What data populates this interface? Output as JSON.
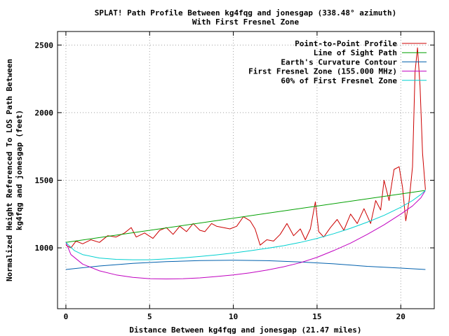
{
  "chart_data": {
    "type": "line",
    "title": "SPLAT! Path Profile Between kg4fqg and jonesgap (338.48° azimuth)",
    "subtitle": "With First Fresnel Zone",
    "xlabel": "Distance Between kg4fqg and jonesgap (21.47 miles)",
    "ylabel_line1": "Normalized Height Referenced To LOS Path Between",
    "ylabel_line2": "kg4fqg and jonesgap (feet)",
    "xlim": [
      -0.5,
      22
    ],
    "ylim": [
      550,
      2600
    ],
    "x_ticks": [
      0,
      5,
      10,
      15,
      20
    ],
    "y_ticks": [
      1000,
      1500,
      2000,
      2500
    ],
    "grid": true,
    "legend_position": "top-right",
    "series": [
      {
        "name": "Point-to-Point Profile",
        "color": "#cc0000",
        "x": [
          0,
          0.3,
          0.6,
          1.0,
          1.5,
          2.0,
          2.5,
          3.0,
          3.5,
          3.9,
          4.2,
          4.7,
          5.2,
          5.6,
          6.0,
          6.4,
          6.8,
          7.2,
          7.6,
          8.0,
          8.3,
          8.7,
          9.0,
          9.4,
          9.8,
          10.2,
          10.6,
          11.0,
          11.3,
          11.6,
          12.0,
          12.4,
          12.8,
          13.2,
          13.6,
          14.0,
          14.3,
          14.6,
          14.9,
          15.1,
          15.4,
          15.8,
          16.2,
          16.6,
          17.0,
          17.4,
          17.8,
          18.2,
          18.5,
          18.8,
          19.0,
          19.3,
          19.6,
          19.9,
          20.1,
          20.3,
          20.5,
          20.7,
          20.85,
          21.0,
          21.15,
          21.3,
          21.47
        ],
        "y": [
          1020,
          1000,
          1050,
          1030,
          1060,
          1040,
          1090,
          1080,
          1110,
          1150,
          1080,
          1110,
          1070,
          1130,
          1150,
          1100,
          1160,
          1120,
          1180,
          1130,
          1120,
          1180,
          1160,
          1150,
          1140,
          1160,
          1230,
          1200,
          1140,
          1020,
          1060,
          1050,
          1100,
          1180,
          1090,
          1140,
          1060,
          1140,
          1340,
          1120,
          1080,
          1150,
          1210,
          1130,
          1250,
          1180,
          1290,
          1180,
          1350,
          1280,
          1500,
          1350,
          1580,
          1600,
          1450,
          1200,
          1350,
          1600,
          2300,
          2480,
          2200,
          1700,
          1430
        ]
      },
      {
        "name": "Line of Sight Path",
        "color": "#00a000",
        "x": [
          0,
          21.47
        ],
        "y": [
          1040,
          1425
        ]
      },
      {
        "name": "Earth's Curvature Contour",
        "color": "#0060ad",
        "x": [
          0,
          2,
          4,
          6,
          8,
          10,
          12,
          14,
          16,
          18,
          20,
          21.47
        ],
        "y": [
          840,
          866,
          885,
          898,
          906,
          908,
          905,
          896,
          882,
          863,
          850,
          840
        ]
      },
      {
        "name": "First Fresnel Zone (155.000 MHz)",
        "color": "#c000c0",
        "x": [
          0,
          0.3,
          1,
          2,
          3,
          4,
          5,
          6,
          7,
          8,
          9,
          10,
          11,
          12,
          13,
          14,
          15,
          16,
          17,
          18,
          19,
          20,
          20.7,
          21.2,
          21.47
        ],
        "y": [
          1040,
          950,
          880,
          830,
          800,
          782,
          772,
          770,
          772,
          778,
          788,
          800,
          815,
          835,
          860,
          890,
          930,
          980,
          1035,
          1100,
          1170,
          1250,
          1310,
          1370,
          1425
        ]
      },
      {
        "name": "60% of First Fresnel Zone",
        "color": "#00d0d0",
        "x": [
          0,
          0.5,
          1,
          2,
          3,
          4,
          5,
          6,
          7,
          8,
          9,
          10,
          11,
          12,
          13,
          14,
          15,
          16,
          17,
          18,
          19,
          20,
          20.7,
          21.2,
          21.47
        ],
        "y": [
          1040,
          980,
          950,
          925,
          915,
          912,
          912,
          918,
          926,
          936,
          948,
          962,
          978,
          996,
          1016,
          1040,
          1070,
          1105,
          1145,
          1190,
          1240,
          1300,
          1350,
          1395,
          1425
        ]
      }
    ]
  }
}
